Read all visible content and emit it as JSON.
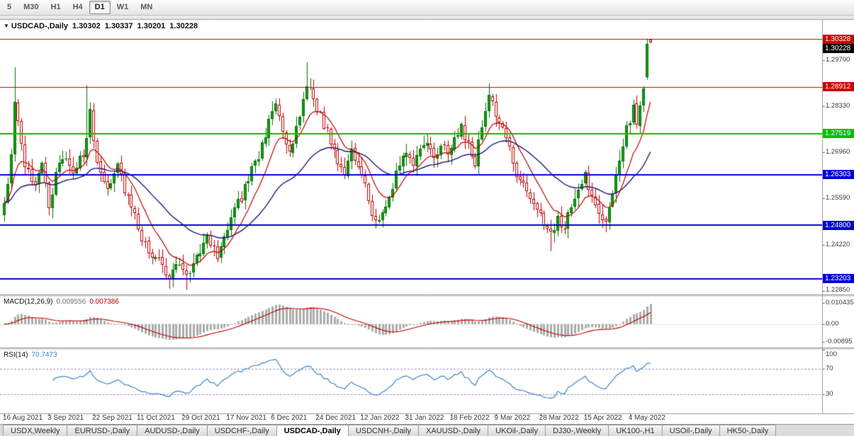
{
  "toolbar": {
    "timeframes": [
      {
        "label": "5",
        "active": false
      },
      {
        "label": "M30",
        "active": false
      },
      {
        "label": "H1",
        "active": false
      },
      {
        "label": "H4",
        "active": false
      },
      {
        "label": "D1",
        "active": true
      },
      {
        "label": "W1",
        "active": false
      },
      {
        "label": "MN",
        "active": false
      }
    ]
  },
  "chart": {
    "title": {
      "symbol": "USDCAD-,Daily",
      "open": "1.30302",
      "high": "1.30337",
      "low": "1.30201",
      "close": "1.30228"
    },
    "price_range": [
      1.2274,
      1.309
    ],
    "y_ticks": [
      "1.29700",
      "1.28330",
      "1.26960",
      "1.25590",
      "1.24220",
      "1.22850"
    ],
    "hlines": [
      {
        "price": 1.30328,
        "label": "1.30328",
        "color": "#cc0000",
        "width": 1
      },
      {
        "price": 1.28912,
        "label": "1.28912",
        "color": "#cc0000",
        "width": 1
      },
      {
        "price": 1.27519,
        "label": "1.27519",
        "color": "#00c000",
        "width": 2
      },
      {
        "price": 1.26303,
        "label": "1.26303",
        "color": "#0000d0",
        "width": 2
      },
      {
        "price": 1.248,
        "label": "1.24800",
        "color": "#0000d0",
        "width": 2
      },
      {
        "price": 1.23203,
        "label": "1.23203",
        "color": "#0000d0",
        "width": 2
      }
    ],
    "current_price": {
      "label": "1.30228",
      "value": 1.30228,
      "bg": "#000000"
    }
  },
  "macd": {
    "name": "MACD(12,26,9)",
    "value_main": "0.009556",
    "value_signal": "0.007386",
    "range": [
      -0.0116,
      0.0136
    ],
    "ticks": [
      {
        "label": "0.010435",
        "value": 0.010435
      },
      {
        "label": "0.00",
        "value": 0
      },
      {
        "label": "-0.00895",
        "value": -0.00895
      }
    ]
  },
  "rsi": {
    "name": "RSI(14)",
    "value": "70.7473",
    "range": [
      0,
      100
    ],
    "ticks": [
      {
        "label": "100",
        "value": 100
      },
      {
        "label": "70",
        "value": 70
      },
      {
        "label": "30",
        "value": 30
      }
    ],
    "levels": [
      70,
      30
    ]
  },
  "x_axis": {
    "labels": [
      {
        "text": "16 Aug 2021",
        "index": 0
      },
      {
        "text": "3 Sep 2021",
        "index": 13
      },
      {
        "text": "22 Sep 2021",
        "index": 26
      },
      {
        "text": "11 Oct 2021",
        "index": 39
      },
      {
        "text": "29 Oct 2021",
        "index": 52
      },
      {
        "text": "17 Nov 2021",
        "index": 65
      },
      {
        "text": "6 Dec 2021",
        "index": 78
      },
      {
        "text": "24 Dec 2021",
        "index": 91
      },
      {
        "text": "12 Jan 2022",
        "index": 104
      },
      {
        "text": "31 Jan 2022",
        "index": 117
      },
      {
        "text": "18 Feb 2022",
        "index": 130
      },
      {
        "text": "9 Mar 2022",
        "index": 143
      },
      {
        "text": "28 Mar 2022",
        "index": 156
      },
      {
        "text": "15 Apr 2022",
        "index": 169
      },
      {
        "text": "4 May 2022",
        "index": 182
      }
    ]
  },
  "tabs": [
    {
      "label": "USDX,Weekly",
      "active": false
    },
    {
      "label": "EURUSD-,Daily",
      "active": false
    },
    {
      "label": "AUDUSD-,Daily",
      "active": false
    },
    {
      "label": "USDCHF-,Daily",
      "active": false
    },
    {
      "label": "USDCAD-,Daily",
      "active": true
    },
    {
      "label": "USDCNH-,Daily",
      "active": false
    },
    {
      "label": "XAUUSD-,Daily",
      "active": false
    },
    {
      "label": "UKOil-,Daily",
      "active": false
    },
    {
      "label": "DJ30-,Weekly",
      "active": false
    },
    {
      "label": "UK100-,H1",
      "active": false
    },
    {
      "label": "USOil-,Daily",
      "active": false
    },
    {
      "label": "HK50-,Daily",
      "active": false
    }
  ],
  "chart_data": {
    "type": "candlestick",
    "symbol": "USDCAD-",
    "timeframe": "Daily",
    "num_bars": 189,
    "price_axis_range": [
      1.2274,
      1.309
    ],
    "candle_colors": {
      "bull_fill": "#0ea10e",
      "bull_border": "#0a700a",
      "bear_fill": "#ffffff",
      "bear_border": "#c00000"
    },
    "noise": 0.0016,
    "seed": 11,
    "close_anchors": [
      [
        0,
        1.2545
      ],
      [
        1,
        1.26
      ],
      [
        2,
        1.269
      ],
      [
        3,
        1.2835
      ],
      [
        4,
        1.28
      ],
      [
        6,
        1.265
      ],
      [
        9,
        1.261
      ],
      [
        11,
        1.2655
      ],
      [
        13,
        1.253
      ],
      [
        15,
        1.264
      ],
      [
        18,
        1.269
      ],
      [
        20,
        1.263
      ],
      [
        23,
        1.2695
      ],
      [
        25,
        1.281
      ],
      [
        27,
        1.265
      ],
      [
        30,
        1.2595
      ],
      [
        33,
        1.265
      ],
      [
        36,
        1.256
      ],
      [
        39,
        1.247
      ],
      [
        42,
        1.24
      ],
      [
        45,
        1.2372
      ],
      [
        48,
        1.233
      ],
      [
        51,
        1.2372
      ],
      [
        53,
        1.232
      ],
      [
        56,
        1.2392
      ],
      [
        59,
        1.2442
      ],
      [
        62,
        1.2385
      ],
      [
        64,
        1.245
      ],
      [
        66,
        1.2512
      ],
      [
        69,
        1.2562
      ],
      [
        72,
        1.264
      ],
      [
        75,
        1.2712
      ],
      [
        77,
        1.279
      ],
      [
        79,
        1.2832
      ],
      [
        81,
        1.2752
      ],
      [
        83,
        1.2702
      ],
      [
        85,
        1.2762
      ],
      [
        87,
        1.2852
      ],
      [
        89,
        1.2902
      ],
      [
        91,
        1.2832
      ],
      [
        93,
        1.2782
      ],
      [
        95,
        1.2732
      ],
      [
        97,
        1.2662
      ],
      [
        99,
        1.2632
      ],
      [
        101,
        1.2702
      ],
      [
        103,
        1.2662
      ],
      [
        105,
        1.2592
      ],
      [
        107,
        1.2522
      ],
      [
        109,
        1.2482
      ],
      [
        111,
        1.2542
      ],
      [
        113,
        1.2602
      ],
      [
        115,
        1.2652
      ],
      [
        117,
        1.2702
      ],
      [
        119,
        1.2672
      ],
      [
        121,
        1.2702
      ],
      [
        123,
        1.2732
      ],
      [
        125,
        1.2682
      ],
      [
        127,
        1.2722
      ],
      [
        129,
        1.2692
      ],
      [
        131,
        1.2752
      ],
      [
        133,
        1.2772
      ],
      [
        135,
        1.2722
      ],
      [
        137,
        1.2662
      ],
      [
        139,
        1.2782
      ],
      [
        141,
        1.2862
      ],
      [
        143,
        1.2802
      ],
      [
        145,
        1.2772
      ],
      [
        147,
        1.2702
      ],
      [
        149,
        1.2632
      ],
      [
        151,
        1.2592
      ],
      [
        153,
        1.2552
      ],
      [
        155,
        1.2522
      ],
      [
        157,
        1.2492
      ],
      [
        159,
        1.2452
      ],
      [
        161,
        1.2502
      ],
      [
        163,
        1.2472
      ],
      [
        165,
        1.2532
      ],
      [
        167,
        1.2582
      ],
      [
        169,
        1.2622
      ],
      [
        171,
        1.2572
      ],
      [
        173,
        1.2512
      ],
      [
        175,
        1.2482
      ],
      [
        177,
        1.2572
      ],
      [
        179,
        1.2682
      ],
      [
        181,
        1.2762
      ],
      [
        183,
        1.2832
      ],
      [
        184,
        1.2772
      ],
      [
        185,
        1.2842
      ],
      [
        186,
        1.2902
      ],
      [
        187,
        1.302
      ],
      [
        188,
        1.30228
      ]
    ],
    "spikes": [
      {
        "i": 3,
        "h": 1.2949
      },
      {
        "i": 24,
        "h": 1.2896
      },
      {
        "i": 53,
        "l": 1.2288
      },
      {
        "i": 88,
        "h": 1.2964
      },
      {
        "i": 141,
        "h": 1.2901
      },
      {
        "i": 159,
        "l": 1.2403
      },
      {
        "i": 175,
        "l": 1.2459
      },
      {
        "i": 187,
        "h": 1.3035
      }
    ],
    "penultimate_bar": {
      "open": 1.292,
      "high": 1.3034,
      "low": 1.2912,
      "close": 1.3018
    },
    "last_bar": {
      "open": 1.30302,
      "high": 1.30337,
      "low": 1.30201,
      "close": 1.30228
    },
    "moving_averages": [
      {
        "period": 10,
        "method": "ema",
        "color": "#c00000"
      },
      {
        "period": 34,
        "method": "ema",
        "color": "#1b1b7a"
      }
    ],
    "macd": {
      "fast": 12,
      "slow": 26,
      "signal": 9,
      "histogram_color": "#ababab",
      "signal_color": "#c00000"
    },
    "rsi": {
      "period": 14,
      "color": "#3a87c8",
      "level_color": "#9898c8"
    }
  }
}
